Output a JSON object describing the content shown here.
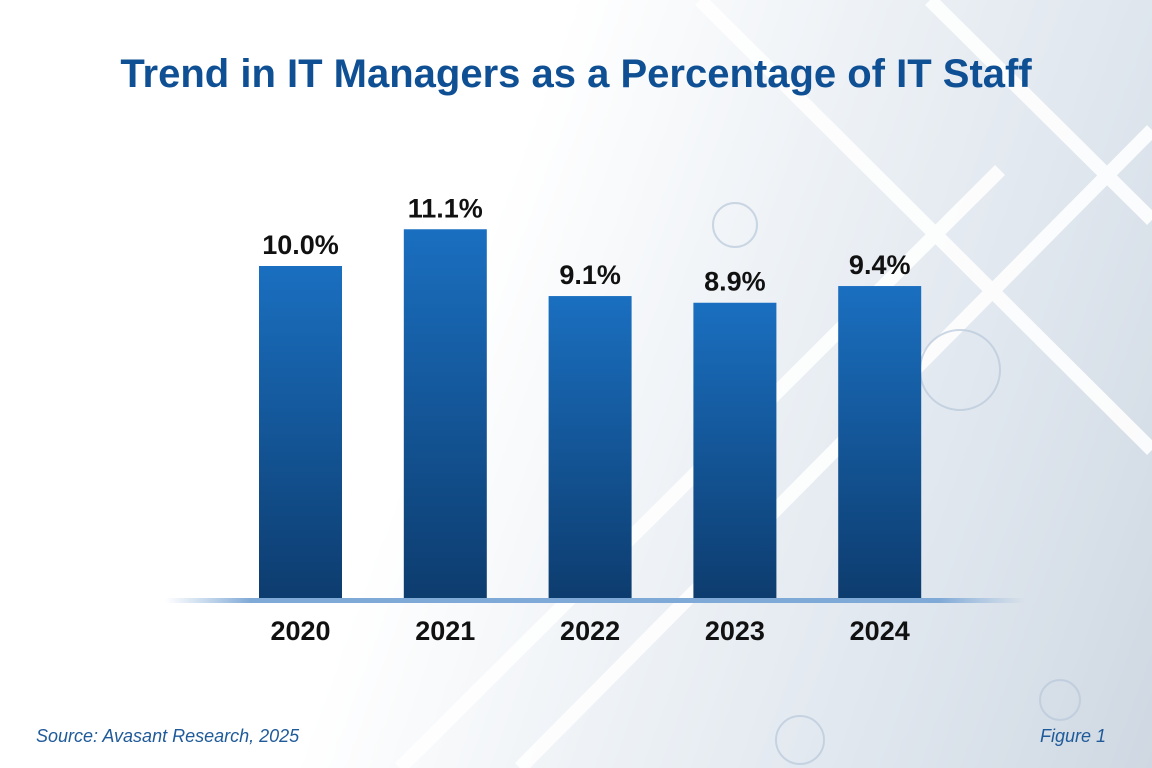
{
  "chart_data": {
    "type": "bar",
    "title": "Trend in IT Managers as a Percentage of IT Staff",
    "categories": [
      "2020",
      "2021",
      "2022",
      "2023",
      "2024"
    ],
    "values": [
      10.0,
      11.1,
      9.1,
      8.9,
      9.4
    ],
    "data_labels": [
      "10.0%",
      "11.1%",
      "9.1%",
      "8.9%",
      "9.4%"
    ],
    "xlabel": "",
    "ylabel": "",
    "ylim": [
      0,
      12
    ],
    "grid": false,
    "bar_color_top": "#1a6fc0",
    "bar_color_bottom": "#0d3c6e"
  },
  "footer": {
    "source": "Source: Avasant Research, 2025",
    "figure": "Figure 1"
  }
}
